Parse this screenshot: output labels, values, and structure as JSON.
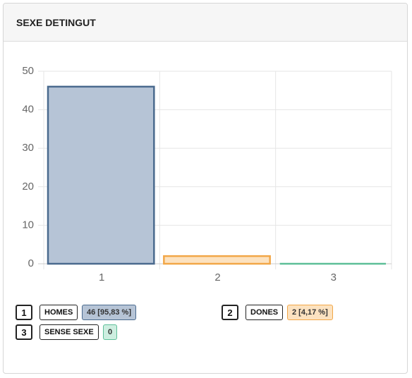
{
  "chart_data": {
    "type": "bar",
    "title": "SEXE DETINGUT",
    "categories": [
      "1",
      "2",
      "3"
    ],
    "values": [
      46,
      2,
      0
    ],
    "labels": [
      "HOMES",
      "DONES",
      "SENSE SEXE"
    ],
    "value_labels": [
      "46 [95,83 %]",
      "2 [4,17 %]",
      "0"
    ],
    "colors": [
      "#4a6a8e",
      "#f2a748",
      "#5dbf98"
    ],
    "fills": [
      "#b6c4d6",
      "#fce2c0",
      "#cdeee0"
    ],
    "ylim": [
      0,
      50
    ],
    "yticks": [
      0,
      10,
      20,
      30,
      40,
      50
    ],
    "grid": true
  }
}
